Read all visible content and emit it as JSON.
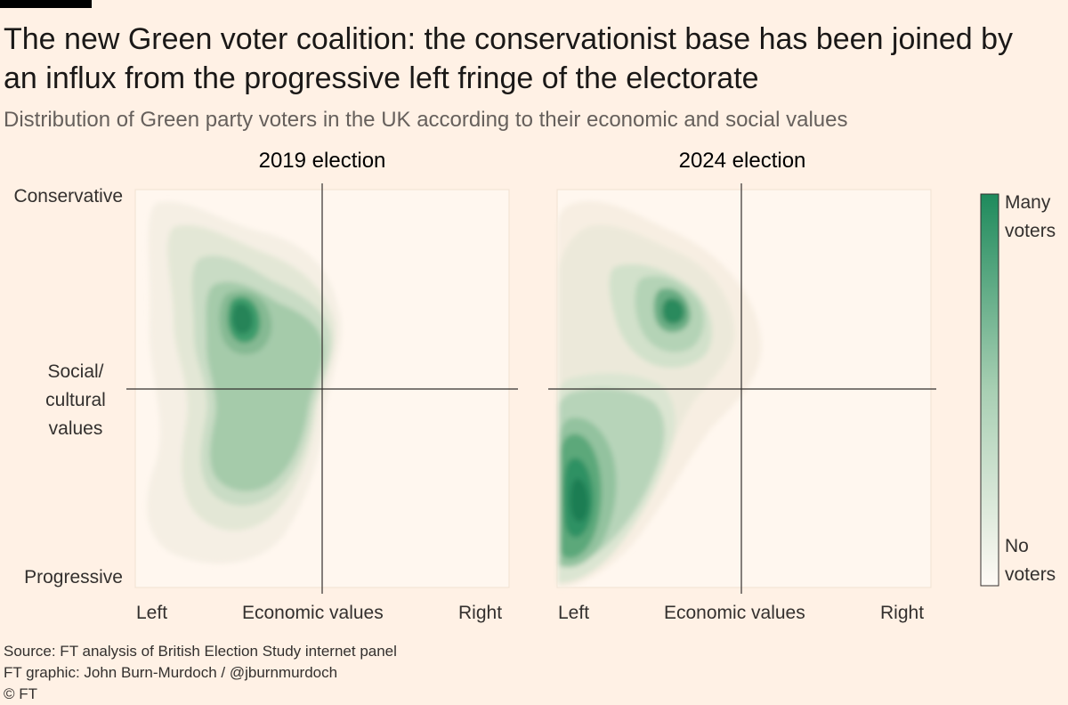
{
  "header": {
    "title": "The new Green voter coalition: the conservationist base has been joined by an influx from the progressive left fringe of the electorate",
    "subtitle": "Distribution of Green party voters in the UK according to their economic and social values"
  },
  "footer": {
    "source": "Source: FT analysis of British Election Study internet panel",
    "credit": "FT graphic: John Burn-Murdoch / @jburnmurdoch",
    "copyright": "© FT"
  },
  "colors": {
    "background": "#fff1e5",
    "plot_background": "#fff7ef",
    "density_high": "#1e8a5c",
    "density_low": "#f3eee2",
    "axis_line": "#33302e"
  },
  "chart_data": [
    {
      "type": "heatmap",
      "title": "2019 election",
      "xlabel": "Economic values",
      "ylabel": "Social/ cultural values",
      "x_ticks": [
        "Left",
        "Economic values",
        "Right"
      ],
      "y_ticks": [
        "Conservative",
        "Social/ cultural values",
        "Progressive"
      ],
      "xlim": [
        -1,
        1
      ],
      "ylim": [
        -1,
        1
      ],
      "density_peaks": [
        {
          "x": -0.42,
          "y": 0.38,
          "density": 1.0
        },
        {
          "x": -0.38,
          "y": 0.15,
          "density": 0.55
        },
        {
          "x": -0.42,
          "y": -0.35,
          "density": 0.55
        },
        {
          "x": -0.7,
          "y": 0.6,
          "density": 0.15
        },
        {
          "x": -0.6,
          "y": -0.8,
          "density": 0.12
        }
      ]
    },
    {
      "type": "heatmap",
      "title": "2024 election",
      "xlabel": "Economic values",
      "ylabel": "Social/ cultural values",
      "x_ticks": [
        "Left",
        "Economic values",
        "Right"
      ],
      "y_ticks": [
        "Conservative",
        "Social/ cultural values",
        "Progressive"
      ],
      "xlim": [
        -1,
        1
      ],
      "ylim": [
        -1,
        1
      ],
      "density_peaks": [
        {
          "x": -0.88,
          "y": -0.55,
          "density": 1.0
        },
        {
          "x": -0.62,
          "y": -0.3,
          "density": 0.5
        },
        {
          "x": -0.35,
          "y": 0.4,
          "density": 0.85
        },
        {
          "x": -0.7,
          "y": 0.55,
          "density": 0.12
        },
        {
          "x": -0.05,
          "y": 0.15,
          "density": 0.08
        }
      ]
    }
  ],
  "legend": {
    "high_label_1": "Many",
    "high_label_2": "voters",
    "low_label_1": "No",
    "low_label_2": "voters"
  }
}
